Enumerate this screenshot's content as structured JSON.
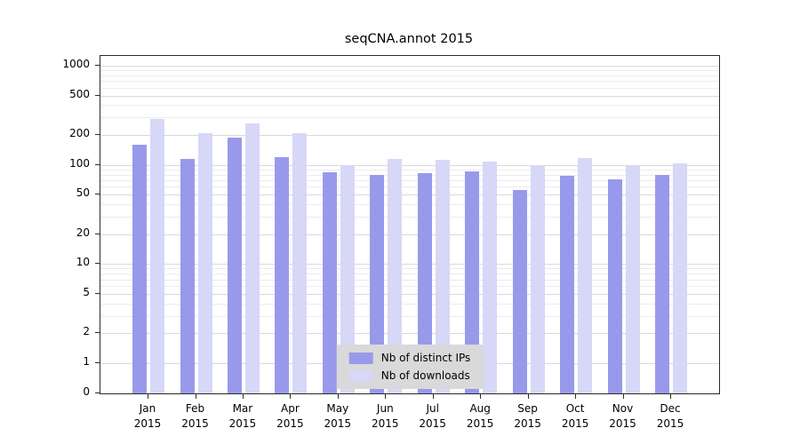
{
  "chart_data": {
    "type": "bar",
    "title": "seqCNA.annot 2015",
    "categories": [
      "Jan",
      "Feb",
      "Mar",
      "Apr",
      "May",
      "Jun",
      "Jul",
      "Aug",
      "Sep",
      "Oct",
      "Nov",
      "Dec"
    ],
    "x_year": "2015",
    "series": [
      {
        "name": "Nb of distinct IPs",
        "color": "#9999ec",
        "values": [
          160,
          115,
          190,
          120,
          85,
          80,
          82,
          86,
          56,
          78,
          72,
          80
        ]
      },
      {
        "name": "Nb of downloads",
        "color": "#d7d7f8",
        "values": [
          290,
          210,
          260,
          210,
          100,
          115,
          112,
          108,
          100,
          118,
          98,
          104
        ]
      }
    ],
    "yticks": [
      0,
      1,
      2,
      5,
      10,
      20,
      50,
      100,
      200,
      500,
      1000
    ],
    "yscale": "log",
    "ylim": [
      0,
      1000
    ],
    "grid": true,
    "legend_position": "bottom-center"
  },
  "style": {
    "grid_major": "#d9d9d9",
    "grid_minor": "#ececec",
    "axis_color": "#2b2b2b",
    "legend_bg": "#d9d9d9",
    "background": "#ffffff"
  }
}
